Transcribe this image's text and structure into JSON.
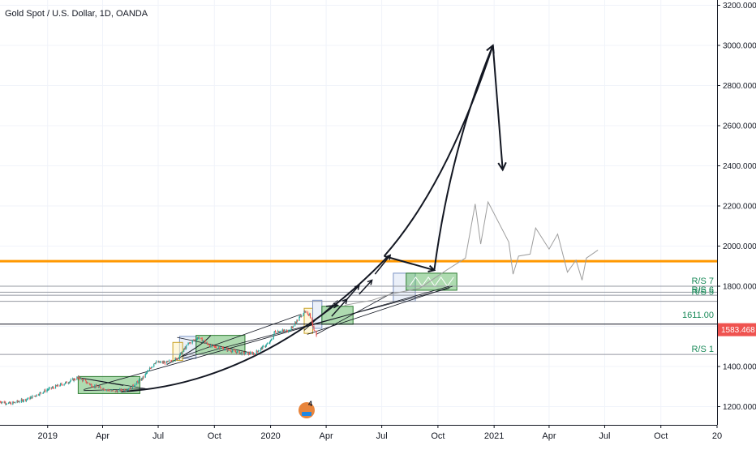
{
  "title": "Gold Spot / U.S. Dollar, 1D, OANDA",
  "colors": {
    "up": "#26a69a",
    "down": "#ef5350",
    "orange_line": "#ff9800",
    "last_price": "#ef5350",
    "rs_label": "#1b8a5a",
    "box_green": "#4caf50",
    "box_blue": "#7b93c4",
    "box_yellow": "#e4c04a",
    "projection": "#9e9e9e"
  },
  "icons": {
    "logo": "tradingview-badge-icon"
  },
  "badge_text": "4",
  "chart_data": {
    "type": "candlestick",
    "title": "Gold Spot / U.S. Dollar, 1D, OANDA",
    "ylim": [
      1100,
      3200
    ],
    "y_ticks": [
      {
        "value": 1200,
        "label": "1200.000"
      },
      {
        "value": 1400,
        "label": "1400.000"
      },
      {
        "value": 1600,
        "label": "1600.000"
      },
      {
        "value": 1800,
        "label": "1800.000"
      },
      {
        "value": 2000,
        "label": "2000.000"
      },
      {
        "value": 2200,
        "label": "2200.000"
      },
      {
        "value": 2400,
        "label": "2400.000"
      },
      {
        "value": 2600,
        "label": "2600.000"
      },
      {
        "value": 2800,
        "label": "2800.000"
      },
      {
        "value": 3000,
        "label": "3000.000"
      },
      {
        "value": 3200,
        "label": "3200.000"
      }
    ],
    "x_ticks": [
      {
        "date": "2019-01-01",
        "label": "2019"
      },
      {
        "date": "2019-04-01",
        "label": "Apr"
      },
      {
        "date": "2019-07-01",
        "label": "Jul"
      },
      {
        "date": "2019-10-01",
        "label": "Oct"
      },
      {
        "date": "2020-01-01",
        "label": "2020"
      },
      {
        "date": "2020-04-01",
        "label": "Apr"
      },
      {
        "date": "2020-07-01",
        "label": "Jul"
      },
      {
        "date": "2020-10-01",
        "label": "Oct"
      },
      {
        "date": "2021-01-01",
        "label": "2021"
      },
      {
        "date": "2021-04-01",
        "label": "Apr"
      },
      {
        "date": "2021-07-01",
        "label": "Jul"
      },
      {
        "date": "2021-10-01",
        "label": "Oct"
      },
      {
        "date": "2022-01-01",
        "label": "20"
      }
    ],
    "xlim": [
      "2018-10-15",
      "2022-01-01"
    ],
    "price_path": [
      {
        "date": "2018-10-15",
        "price": 1225
      },
      {
        "date": "2018-11-01",
        "price": 1215
      },
      {
        "date": "2018-12-01",
        "price": 1240
      },
      {
        "date": "2019-01-01",
        "price": 1285
      },
      {
        "date": "2019-02-01",
        "price": 1320
      },
      {
        "date": "2019-02-20",
        "price": 1345
      },
      {
        "date": "2019-03-15",
        "price": 1305
      },
      {
        "date": "2019-04-20",
        "price": 1275
      },
      {
        "date": "2019-05-15",
        "price": 1290
      },
      {
        "date": "2019-06-05",
        "price": 1340
      },
      {
        "date": "2019-06-25",
        "price": 1420
      },
      {
        "date": "2019-07-15",
        "price": 1420
      },
      {
        "date": "2019-08-01",
        "price": 1440
      },
      {
        "date": "2019-08-20",
        "price": 1515
      },
      {
        "date": "2019-09-05",
        "price": 1545
      },
      {
        "date": "2019-09-25",
        "price": 1500
      },
      {
        "date": "2019-10-15",
        "price": 1490
      },
      {
        "date": "2019-11-15",
        "price": 1465
      },
      {
        "date": "2019-12-05",
        "price": 1465
      },
      {
        "date": "2019-12-31",
        "price": 1520
      },
      {
        "date": "2020-01-08",
        "price": 1575
      },
      {
        "date": "2020-02-01",
        "price": 1580
      },
      {
        "date": "2020-02-24",
        "price": 1670
      },
      {
        "date": "2020-03-05",
        "price": 1660
      },
      {
        "date": "2020-03-10",
        "price": 1600
      },
      {
        "date": "2020-03-16",
        "price": 1560
      }
    ],
    "last_price": {
      "value": 1583.468,
      "label": "1583.468"
    },
    "horizontal_levels": [
      {
        "value": 1925,
        "label": "",
        "color": "#ff9800"
      },
      {
        "value": 1800,
        "label": "R/S 7"
      },
      {
        "value": 1770,
        "label": ""
      },
      {
        "value": 1755,
        "label": "R/S 6"
      },
      {
        "value": 1725,
        "label": "R/S 5"
      },
      {
        "value": 1611,
        "label": "1611.00"
      },
      {
        "value": 1460,
        "label": "R/S 1"
      }
    ],
    "forecast_path": [
      {
        "date": "2020-03-16",
        "price": 1585
      },
      {
        "date": "2020-04-20",
        "price": 1700
      },
      {
        "date": "2020-06-01",
        "price": 1800
      },
      {
        "date": "2020-07-05",
        "price": 1950
      },
      {
        "date": "2020-09-25",
        "price": 1880
      },
      {
        "date": "2020-12-30",
        "price": 3000
      },
      {
        "date": "2021-01-15",
        "price": 2380
      }
    ],
    "projection_path": [
      {
        "date": "2020-05-01",
        "price": 1705
      },
      {
        "date": "2020-06-15",
        "price": 1730
      },
      {
        "date": "2020-07-15",
        "price": 1760
      },
      {
        "date": "2020-09-01",
        "price": 1790
      },
      {
        "date": "2020-10-15",
        "price": 1880
      },
      {
        "date": "2020-11-15",
        "price": 1940
      },
      {
        "date": "2020-12-01",
        "price": 2210
      },
      {
        "date": "2020-12-10",
        "price": 2010
      },
      {
        "date": "2020-12-22",
        "price": 2220
      },
      {
        "date": "2021-01-25",
        "price": 2020
      },
      {
        "date": "2021-02-01",
        "price": 1860
      },
      {
        "date": "2021-02-10",
        "price": 1950
      },
      {
        "date": "2021-03-01",
        "price": 1960
      },
      {
        "date": "2021-03-10",
        "price": 2090
      },
      {
        "date": "2021-04-01",
        "price": 1985
      },
      {
        "date": "2021-04-15",
        "price": 2060
      },
      {
        "date": "2021-05-01",
        "price": 1870
      },
      {
        "date": "2021-05-15",
        "price": 1930
      },
      {
        "date": "2021-05-25",
        "price": 1830
      },
      {
        "date": "2021-06-01",
        "price": 1940
      },
      {
        "date": "2021-06-20",
        "price": 1980
      }
    ],
    "zones": [
      {
        "kind": "green",
        "x0": "2019-02-20",
        "x1": "2019-06-01",
        "y0": 1265,
        "y1": 1350
      },
      {
        "kind": "blue",
        "x0": "2019-08-05",
        "x1": "2019-09-01",
        "y0": 1440,
        "y1": 1550
      },
      {
        "kind": "yellow",
        "x0": "2019-07-25",
        "x1": "2019-08-10",
        "y0": 1430,
        "y1": 1520
      },
      {
        "kind": "green",
        "x0": "2019-09-01",
        "x1": "2019-11-20",
        "y0": 1460,
        "y1": 1555
      },
      {
        "kind": "yellow",
        "x0": "2020-02-25",
        "x1": "2020-03-10",
        "y0": 1565,
        "y1": 1690
      },
      {
        "kind": "blue",
        "x0": "2020-03-10",
        "x1": "2020-03-25",
        "y0": 1590,
        "y1": 1730
      },
      {
        "kind": "green",
        "x0": "2020-03-25",
        "x1": "2020-05-15",
        "y0": 1610,
        "y1": 1700
      },
      {
        "kind": "blue",
        "x0": "2020-07-20",
        "x1": "2020-08-25",
        "y0": 1725,
        "y1": 1865
      },
      {
        "kind": "green",
        "x0": "2020-08-10",
        "x1": "2020-11-01",
        "y0": 1780,
        "y1": 1865
      }
    ]
  }
}
